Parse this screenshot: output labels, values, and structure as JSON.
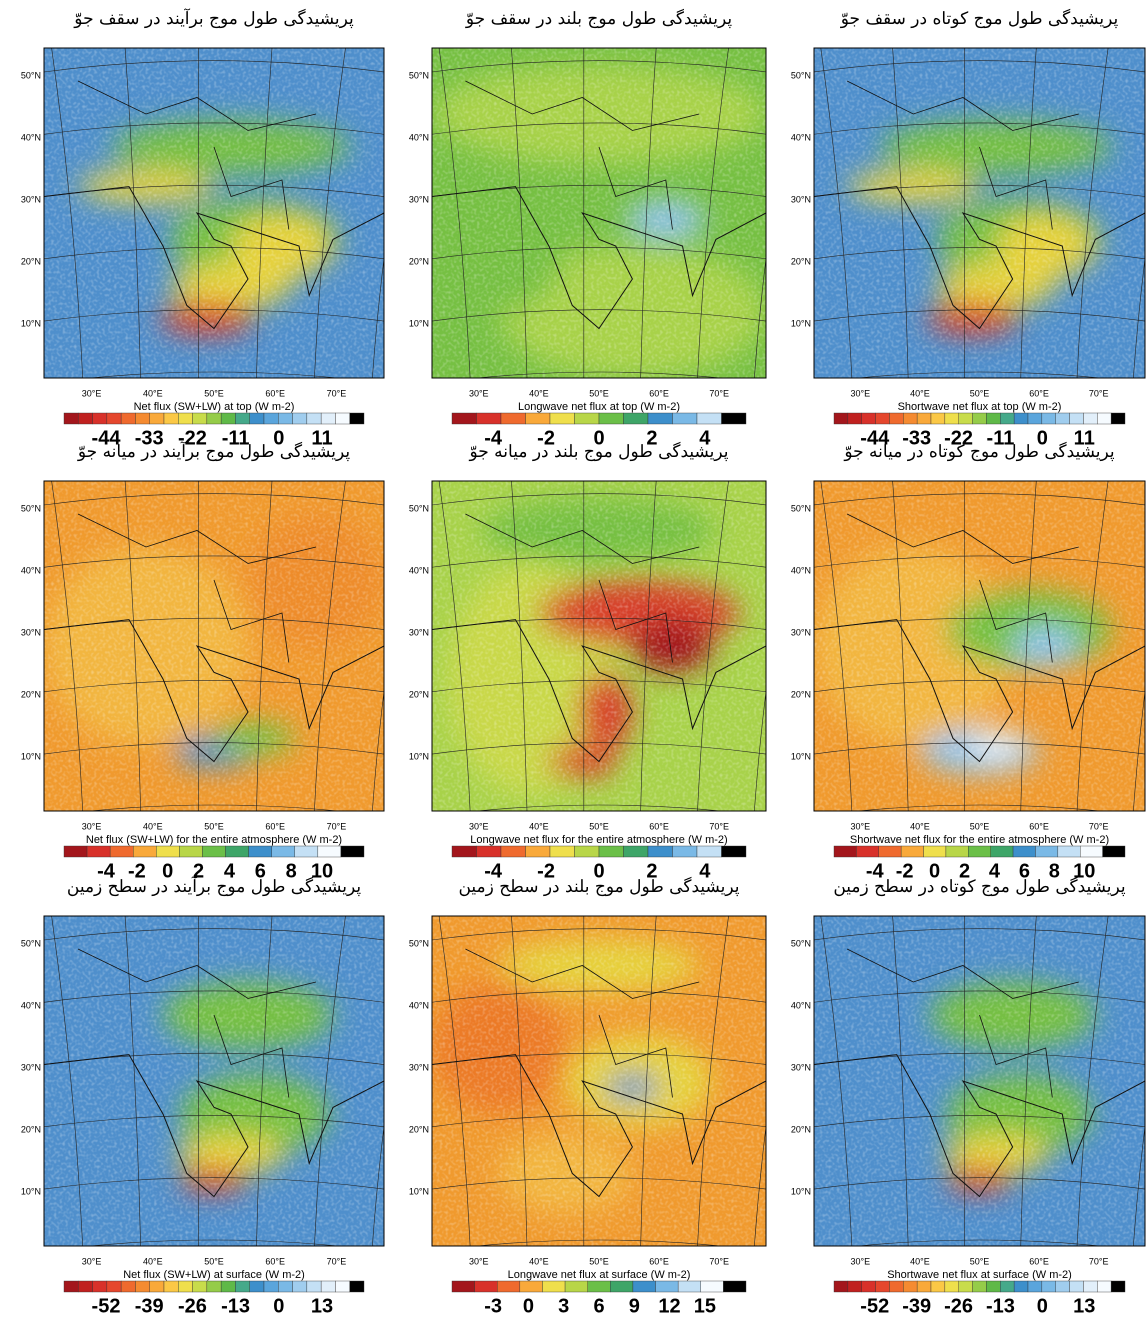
{
  "lat_labels": [
    "50°N",
    "40°N",
    "30°N",
    "20°N",
    "10°N"
  ],
  "lon_labels": [
    "30°E",
    "40°E",
    "50°E",
    "60°E",
    "70°E"
  ],
  "panels": [
    {
      "title": "پریشیدگی طول موج برآیند در سقف جوّ",
      "caption": "Net flux (SW+LW) at top  (W m-2)",
      "colorbar_labels": [
        "-44",
        "-33",
        "-22",
        "-11",
        "0",
        "11"
      ]
    },
    {
      "title": "پریشیدگی طول موج بلند در سقف جوّ",
      "caption": "Longwave net flux at top  (W m-2)",
      "colorbar_labels": [
        "-4",
        "-2",
        "0",
        "2",
        "4"
      ]
    },
    {
      "title": "پریشیدگی طول موج کوتاه در سقف جوّ",
      "caption": "Shortwave net flux at top  (W m-2)",
      "colorbar_labels": [
        "-44",
        "-33",
        "-22",
        "-11",
        "0",
        "11"
      ]
    },
    {
      "title": "پریشیدگی طول موج برآیند در میانه جوّ",
      "caption": "Net flux (SW+LW) for the entire atmosphere  (W m-2)",
      "colorbar_labels": [
        "-4",
        "-2",
        "0",
        "2",
        "4",
        "6",
        "8",
        "10"
      ]
    },
    {
      "title": "پریشیدگی طول موج بلند در میانه جوّ",
      "caption": "Longwave net flux for the entire atmosphere  (W m-2)",
      "colorbar_labels": [
        "-4",
        "-2",
        "0",
        "2",
        "4"
      ]
    },
    {
      "title": "پریشیدگی طول موج کوتاه در میانه جوّ",
      "caption": "Shortwave net flux for the entire atmosphere  (W m-2)",
      "colorbar_labels": [
        "-4",
        "-2",
        "0",
        "2",
        "4",
        "6",
        "8",
        "10"
      ]
    },
    {
      "title": "پریشیدگی طول موج برآیند در سطح زمین",
      "caption": "Net flux (SW+LW) at surface  (W m-2)",
      "colorbar_labels": [
        "-52",
        "-39",
        "-26",
        "-13",
        "0",
        "13"
      ]
    },
    {
      "title": "پریشیدگی طول موج بلند در سطح زمین",
      "caption": "Longwave net flux at surface  (W m-2)",
      "colorbar_labels": [
        "-3",
        "0",
        "3",
        "6",
        "9",
        "12",
        "15"
      ]
    },
    {
      "title": "پریشیدگی طول موج کوتاه در سطح زمین",
      "caption": "Shortwave net flux at surface  (W m-2)",
      "colorbar_labels": [
        "-52",
        "-39",
        "-26",
        "-13",
        "0",
        "13"
      ]
    }
  ]
}
